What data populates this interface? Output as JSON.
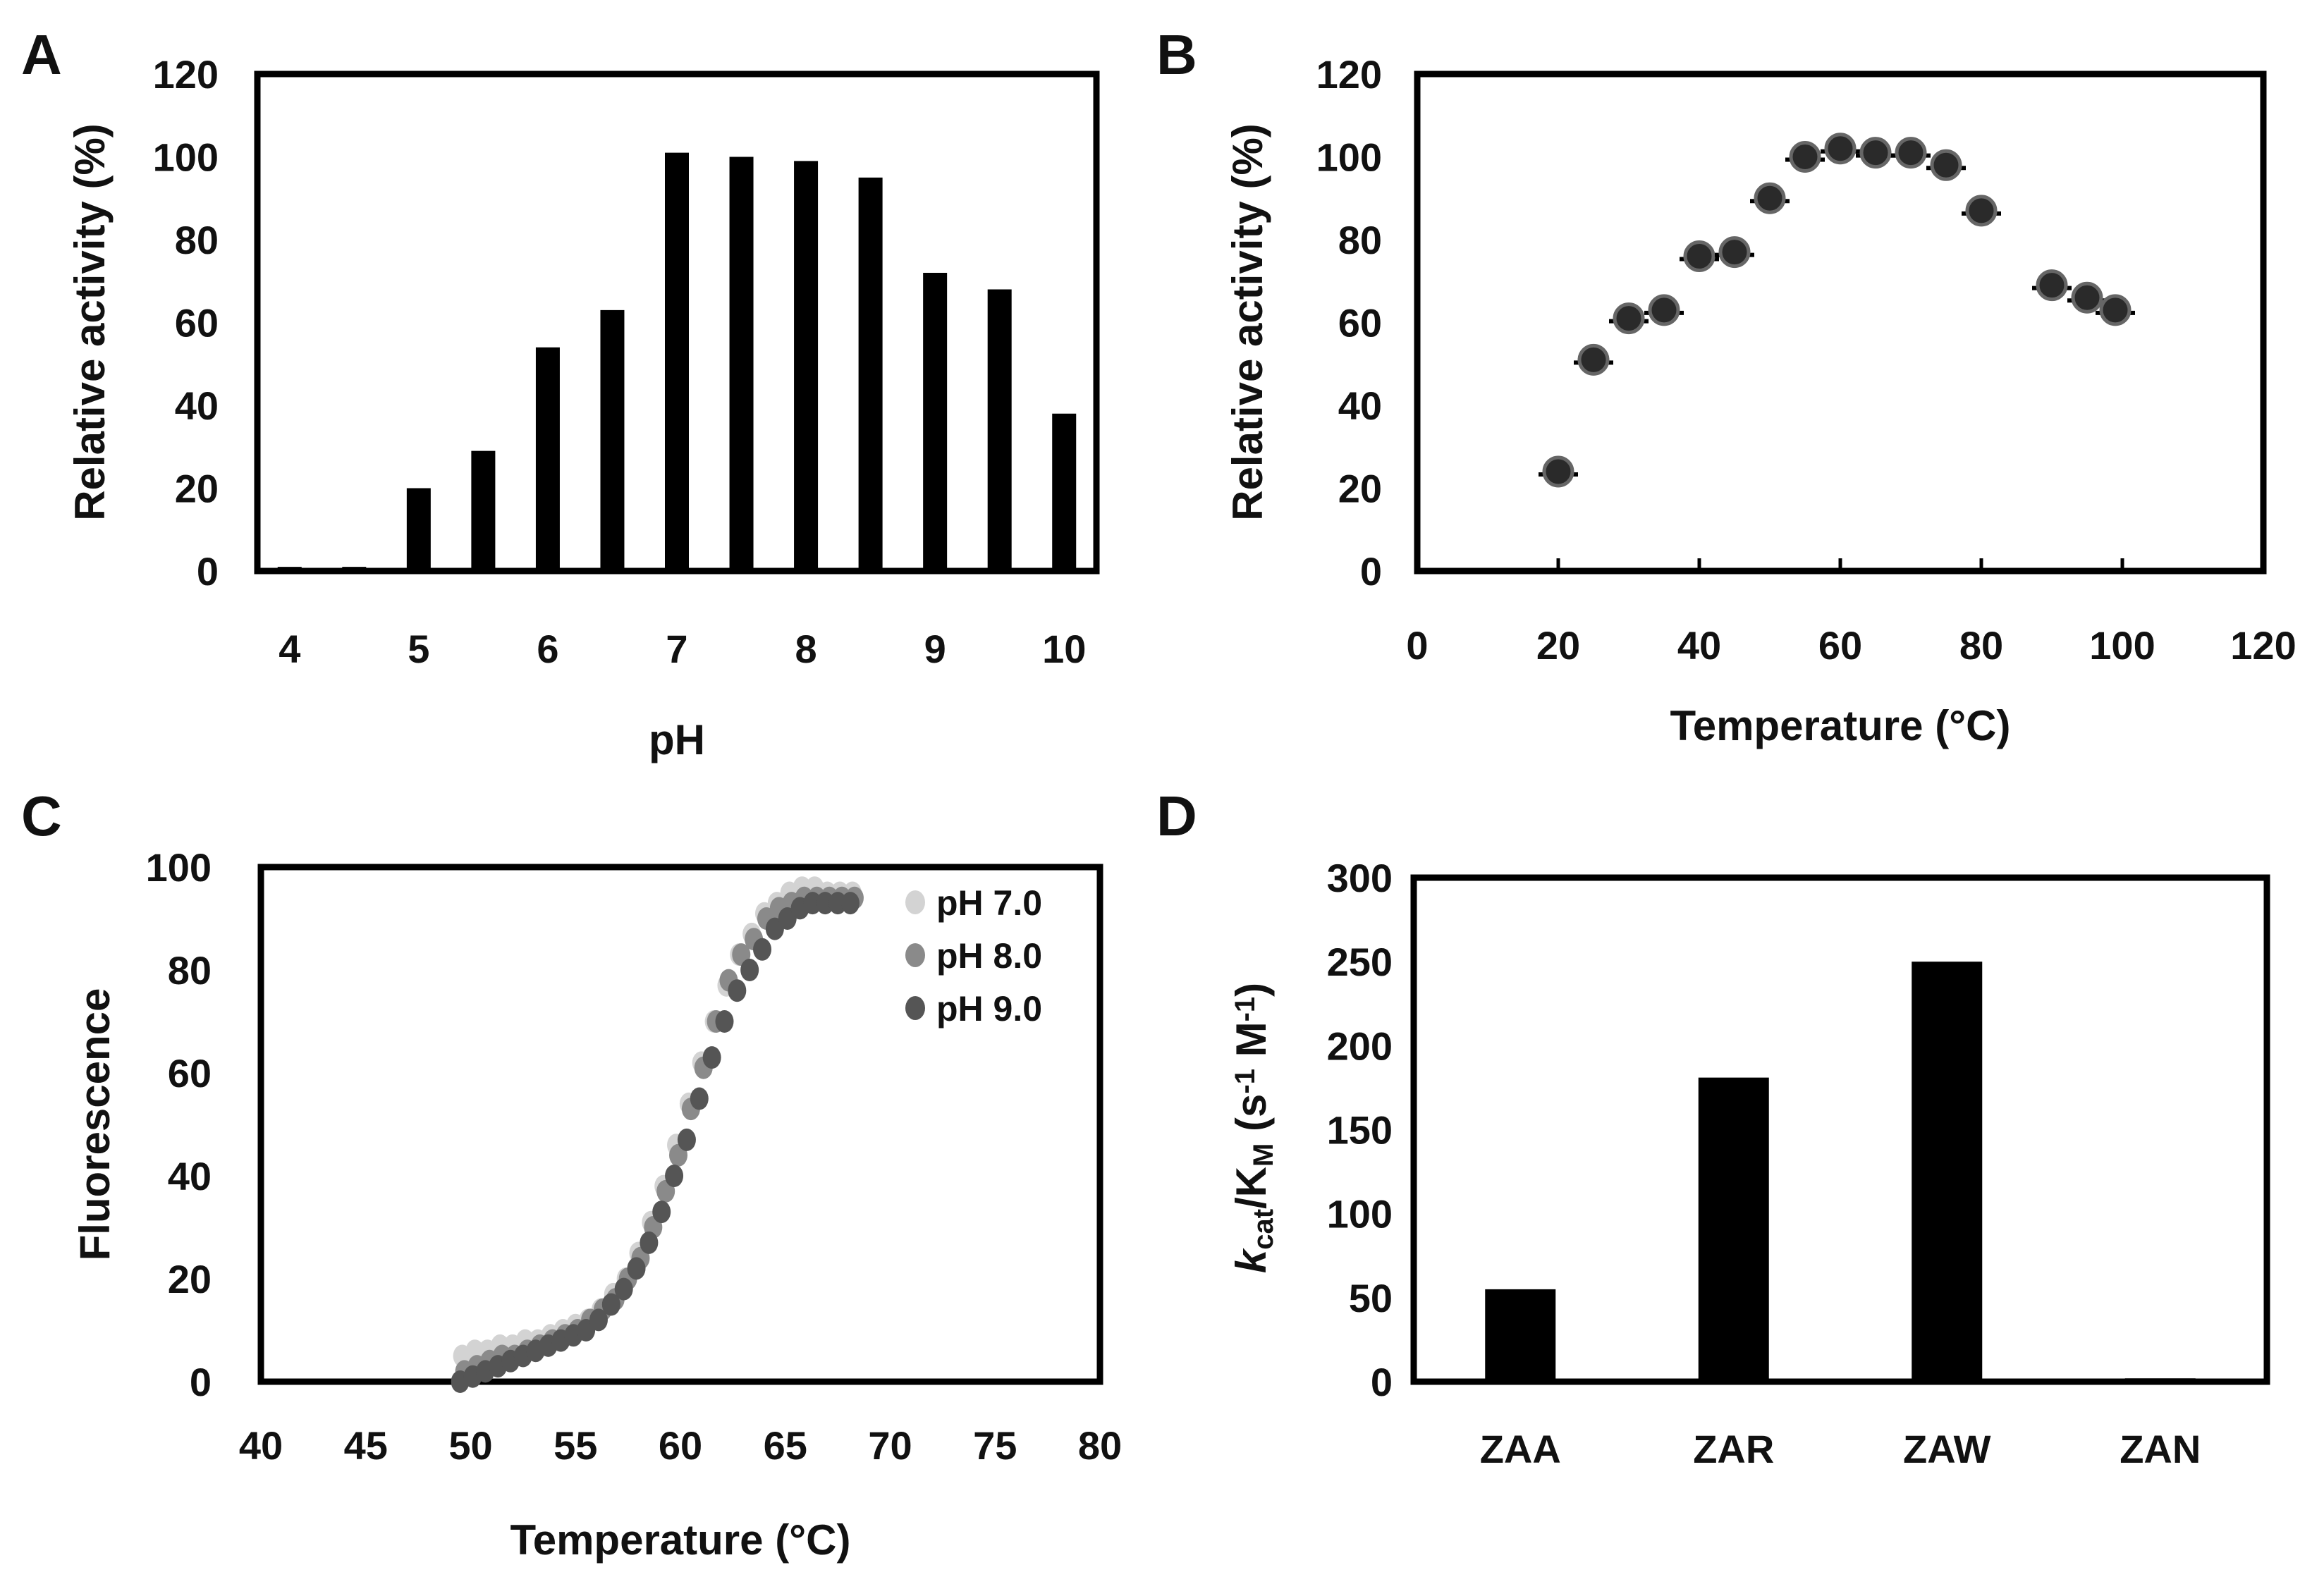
{
  "chart_data": [
    {
      "panel": "A",
      "type": "bar",
      "xlabel": "pH",
      "ylabel": "Relative activity (%)",
      "ylim": [
        0,
        120
      ],
      "yticks": [
        0,
        20,
        40,
        60,
        80,
        100,
        120
      ],
      "xlim": [
        3.75,
        10.25
      ],
      "xticks": [
        4,
        5,
        6,
        7,
        8,
        9,
        10
      ],
      "x": [
        4,
        4.5,
        5,
        5.5,
        6,
        6.5,
        7,
        7.5,
        8,
        8.5,
        9,
        9.5,
        10
      ],
      "values": [
        1,
        1,
        20,
        29,
        54,
        63,
        101,
        100,
        99,
        95,
        72,
        68,
        38
      ],
      "color": "#000000"
    },
    {
      "panel": "B",
      "type": "scatter",
      "xlabel": "Temperature (°C)",
      "ylabel": "Relative activity (%)",
      "xlim": [
        0,
        120
      ],
      "xticks": [
        0,
        20,
        40,
        60,
        80,
        100,
        120
      ],
      "ylim": [
        0,
        120
      ],
      "yticks": [
        0,
        20,
        40,
        60,
        80,
        100,
        120
      ],
      "x": [
        20,
        25,
        30,
        35,
        40,
        45,
        50,
        55,
        60,
        65,
        70,
        75,
        80,
        90,
        95,
        99
      ],
      "y": [
        24,
        51,
        61,
        63,
        76,
        77,
        90,
        100,
        102,
        101,
        101,
        98,
        87,
        69,
        66,
        63
      ],
      "marker_color": "#2a2a2a",
      "marker_edge": "#666666"
    },
    {
      "panel": "C",
      "type": "scatter",
      "xlabel": "Temperature (°C)",
      "ylabel": "Fluorescence",
      "xlim": [
        40,
        80
      ],
      "xticks": [
        40,
        45,
        50,
        55,
        60,
        65,
        70,
        75,
        80
      ],
      "ylim": [
        0,
        100
      ],
      "yticks": [
        0,
        20,
        40,
        60,
        80,
        100
      ],
      "series": [
        {
          "name": "pH 7.0",
          "color": "#d3d3d3",
          "x": [
            49.6,
            50.2,
            50.8,
            51.4,
            52.0,
            52.6,
            53.2,
            53.8,
            54.4,
            55.0,
            55.6,
            56.2,
            56.8,
            57.4,
            58.0,
            58.6,
            59.2,
            59.8,
            60.4,
            61.0,
            61.6,
            62.2,
            62.8,
            63.4,
            64.0,
            64.6,
            65.2,
            65.8,
            66.4,
            67.0,
            67.6,
            68.2
          ],
          "y": [
            5,
            6,
            6,
            7,
            7,
            8,
            8,
            9,
            10,
            11,
            12,
            14,
            17,
            20,
            25,
            31,
            38,
            46,
            54,
            62,
            70,
            77,
            83,
            87,
            91,
            93,
            95,
            96,
            96,
            95,
            95,
            95
          ]
        },
        {
          "name": "pH 8.0",
          "color": "#8a8a8a",
          "x": [
            49.7,
            50.3,
            50.9,
            51.5,
            52.1,
            52.7,
            53.3,
            53.9,
            54.5,
            55.1,
            55.7,
            56.3,
            56.9,
            57.5,
            58.1,
            58.7,
            59.3,
            59.9,
            60.5,
            61.1,
            61.7,
            62.3,
            62.9,
            63.5,
            64.1,
            64.7,
            65.3,
            65.9,
            66.5,
            67.1,
            67.7,
            68.3
          ],
          "y": [
            2,
            3,
            4,
            5,
            5,
            6,
            7,
            8,
            9,
            10,
            12,
            14,
            16,
            20,
            24,
            30,
            37,
            44,
            53,
            61,
            70,
            78,
            83,
            86,
            90,
            92,
            93,
            94,
            94,
            94,
            94,
            94
          ]
        },
        {
          "name": "pH 9.0",
          "color": "#555555",
          "x": [
            49.5,
            50.1,
            50.7,
            51.3,
            51.9,
            52.5,
            53.1,
            53.7,
            54.3,
            54.9,
            55.5,
            56.1,
            56.7,
            57.3,
            57.9,
            58.5,
            59.1,
            59.7,
            60.3,
            60.9,
            61.5,
            62.1,
            62.7,
            63.3,
            63.9,
            64.5,
            65.1,
            65.7,
            66.3,
            66.9,
            67.5,
            68.1
          ],
          "y": [
            0,
            1,
            2,
            3,
            4,
            5,
            6,
            7,
            8,
            9,
            10,
            12,
            15,
            18,
            22,
            27,
            33,
            40,
            47,
            55,
            63,
            70,
            76,
            80,
            84,
            88,
            90,
            92,
            93,
            93,
            93,
            93
          ]
        }
      ],
      "legend": [
        "pH 7.0",
        "pH 8.0",
        "pH 9.0"
      ],
      "legend_position": "top-right"
    },
    {
      "panel": "D",
      "type": "bar",
      "xlabel": "",
      "ylabel_parts": [
        "k",
        "cat",
        "/K",
        "M",
        " (s",
        "-1",
        " M",
        "-1",
        ")"
      ],
      "ylim": [
        0,
        300
      ],
      "yticks": [
        0,
        50,
        100,
        150,
        200,
        250,
        300
      ],
      "categories": [
        "ZAA",
        "ZAR",
        "ZAW",
        "ZAN"
      ],
      "values": [
        55,
        181,
        250,
        2
      ],
      "color": "#000000"
    }
  ]
}
